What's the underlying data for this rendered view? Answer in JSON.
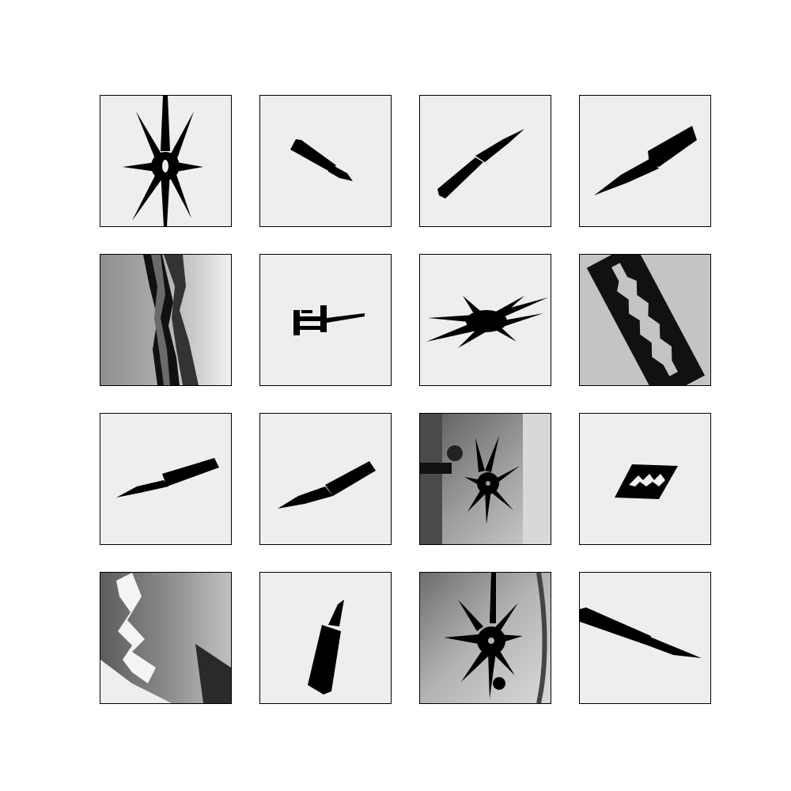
{
  "grid": {
    "rows": 4,
    "cols": 4,
    "tiles": [
      {
        "content": "throwing-star",
        "background": "#eeeeee"
      },
      {
        "content": "knife",
        "background": "#eeeeee"
      },
      {
        "content": "knife",
        "background": "#eeeeee"
      },
      {
        "content": "knife",
        "background": "#eeeeee"
      },
      {
        "content": "blade-closeup",
        "background": "#bdbdbd"
      },
      {
        "content": "multitool",
        "background": "#eeeeee"
      },
      {
        "content": "throwing-star",
        "background": "#eeeeee"
      },
      {
        "content": "razor-blade",
        "background": "#c4c4c4"
      },
      {
        "content": "knife",
        "background": "#eeeeee"
      },
      {
        "content": "knife",
        "background": "#eeeeee"
      },
      {
        "content": "throwing-star-in-bag",
        "background": "#8a8a8a"
      },
      {
        "content": "razor-blade",
        "background": "#eeeeee"
      },
      {
        "content": "blade-closeup",
        "background": "#9e9e9e"
      },
      {
        "content": "knife",
        "background": "#eeeeee"
      },
      {
        "content": "throwing-star-in-bag",
        "background": "#a8a8a8"
      },
      {
        "content": "knife",
        "background": "#eeeeee"
      }
    ]
  }
}
